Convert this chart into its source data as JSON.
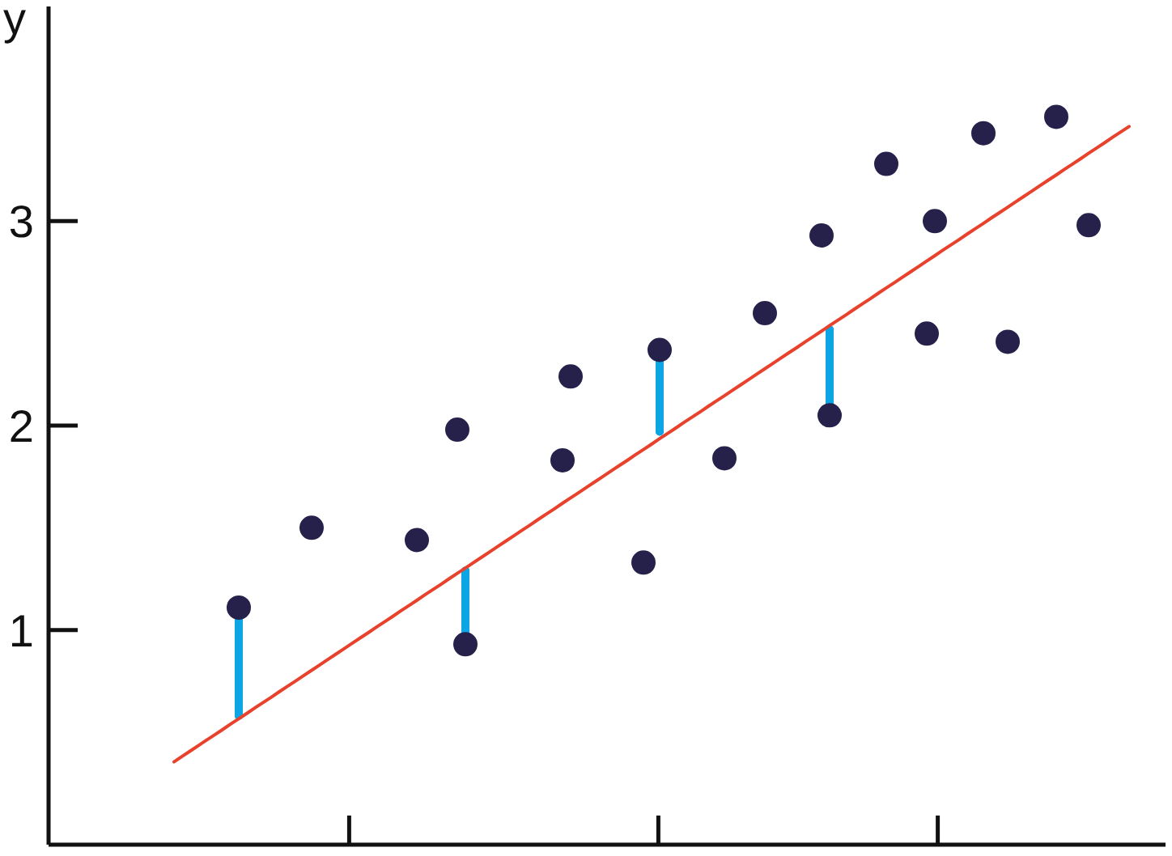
{
  "chart_data": {
    "type": "scatter",
    "ylabel": "y",
    "categories": [
      null,
      null,
      null,
      null,
      null,
      null,
      null,
      null,
      null,
      null,
      null,
      null,
      null,
      null,
      null,
      null,
      null,
      null,
      null,
      null,
      null,
      null,
      null,
      null,
      null,
      null,
      null,
      null,
      null,
      null,
      null,
      null,
      null,
      null,
      null,
      null,
      null,
      null,
      null,
      null,
      null,
      null,
      null,
      null,
      null,
      null,
      null,
      null,
      null,
      null,
      null,
      null,
      null,
      null,
      null,
      null,
      null,
      null,
      null,
      null,
      null,
      null,
      null,
      null,
      null,
      null,
      null,
      null,
      null,
      null,
      null,
      null,
      null,
      null,
      null,
      null,
      null,
      null,
      null,
      null,
      null,
      null,
      null,
      null,
      null,
      null,
      null,
      null,
      null,
      null,
      null,
      null,
      null,
      null,
      null,
      null,
      null,
      null,
      null,
      null,
      null,
      null,
      null,
      null,
      null,
      null,
      null,
      null,
      null,
      null,
      null,
      null,
      null,
      null,
      null,
      null,
      null,
      null,
      null,
      null,
      null,
      null,
      null,
      null,
      null,
      null,
      null,
      null,
      null,
      null,
      null,
      null,
      null,
      null,
      null,
      null,
      null,
      null
    ],
    "series": [
      {
        "color": "#25214a",
        "values": [
          null,
          null,
          null,
          null,
          null,
          null,
          null,
          null,
          null,
          null,
          null,
          null,
          null,
          null,
          null,
          null,
          null,
          null,
          null,
          null,
          null,
          null,
          null,
          1.11,
          null,
          null,
          null,
          null,
          null,
          null,
          null,
          null,
          1.5,
          null,
          null,
          null,
          null,
          null,
          null,
          null,
          null,
          null,
          null,
          null,
          null,
          1.44,
          null,
          null,
          null,
          null,
          1.98,
          0.93,
          null,
          null,
          null,
          null,
          null,
          null,
          null,
          null,
          null,
          null,
          null,
          1.83,
          2.24,
          null,
          null,
          null,
          null,
          null,
          null,
          null,
          null,
          1.33,
          null,
          2.37,
          null,
          null,
          null,
          null,
          null,
          null,
          null,
          1.84,
          null,
          null,
          null,
          null,
          2.55,
          null,
          null,
          null,
          null,
          null,
          null,
          2.93,
          2.05,
          null,
          null,
          null,
          null,
          null,
          null,
          3.28,
          null,
          null,
          null,
          null,
          2.45,
          3.0,
          null,
          null,
          null,
          null,
          null,
          3.43,
          null,
          null,
          2.41,
          null,
          null,
          null,
          null,
          null,
          3.51,
          null,
          null,
          null,
          2.98,
          null,
          null,
          null,
          null,
          null,
          null,
          null,
          null,
          null
        ],
        "errors": [
          null,
          null,
          null,
          null,
          null,
          null,
          null,
          null,
          null,
          null,
          null,
          null,
          null,
          null,
          null,
          null,
          null,
          null,
          null,
          null,
          null,
          null,
          null,
          [
            0.58,
            1.11
          ],
          null,
          null,
          null,
          null,
          null,
          null,
          null,
          null,
          null,
          null,
          null,
          null,
          null,
          null,
          null,
          null,
          null,
          null,
          null,
          null,
          null,
          null,
          null,
          null,
          null,
          null,
          null,
          [
            0.93,
            1.29
          ],
          null,
          null,
          null,
          null,
          null,
          null,
          null,
          null,
          null,
          null,
          null,
          null,
          null,
          null,
          null,
          null,
          null,
          null,
          null,
          null,
          null,
          null,
          null,
          [
            1.97,
            2.37
          ],
          null,
          null,
          null,
          null,
          null,
          null,
          null,
          null,
          null,
          null,
          null,
          null,
          null,
          null,
          null,
          null,
          null,
          null,
          null,
          null,
          [
            2.05,
            2.47
          ],
          null,
          null,
          null,
          null,
          null,
          null,
          null,
          null,
          null,
          null,
          null,
          null,
          null,
          null,
          null,
          null,
          null,
          null,
          null,
          null,
          null,
          null,
          null,
          null,
          null,
          null,
          null,
          null,
          null,
          null,
          null,
          null,
          null,
          null,
          null,
          null,
          null,
          null,
          null,
          null,
          null
        ]
      },
      {
        "type": "line",
        "color": "#e8412c",
        "marker": "none",
        "values": [
          null,
          null,
          null,
          null,
          null,
          null,
          null,
          null,
          null,
          null,
          null,
          null,
          null,
          null,
          null,
          0.355,
          0.382,
          0.408,
          0.434,
          0.461,
          0.487,
          0.513,
          0.54,
          0.566,
          0.592,
          0.619,
          0.645,
          0.671,
          0.698,
          0.724,
          0.75,
          0.777,
          0.803,
          0.829,
          0.856,
          0.882,
          0.908,
          0.935,
          0.961,
          0.987,
          1.014,
          1.04,
          1.066,
          1.093,
          1.119,
          1.145,
          1.172,
          1.198,
          1.224,
          1.251,
          1.277,
          1.303,
          1.33,
          1.356,
          1.382,
          1.409,
          1.435,
          1.461,
          1.488,
          1.514,
          1.541,
          1.567,
          1.593,
          1.62,
          1.646,
          1.672,
          1.699,
          1.725,
          1.751,
          1.778,
          1.804,
          1.83,
          1.857,
          1.883,
          1.909,
          1.936,
          1.962,
          1.988,
          2.015,
          2.041,
          2.067,
          2.094,
          2.12,
          2.146,
          2.173,
          2.199,
          2.225,
          2.252,
          2.278,
          2.304,
          2.331,
          2.357,
          2.383,
          2.41,
          2.436,
          2.462,
          2.489,
          2.515,
          2.541,
          2.568,
          2.594,
          2.62,
          2.647,
          2.673,
          2.699,
          2.726,
          2.752,
          2.778,
          2.805,
          2.831,
          2.858,
          2.884,
          2.91,
          2.937,
          2.963,
          2.989,
          3.016,
          3.042,
          3.068,
          3.095,
          3.121,
          3.147,
          3.174,
          3.2,
          3.226,
          3.253,
          3.279,
          3.305,
          3.332,
          3.358,
          3.384,
          3.411,
          3.437,
          3.463,
          null,
          null,
          null,
          null
        ]
      }
    ],
    "ylim": [
      -0.05,
      4.05
    ],
    "yticks": [
      1,
      2,
      3
    ],
    "marker": "circle",
    "line_style": "solid"
  }
}
